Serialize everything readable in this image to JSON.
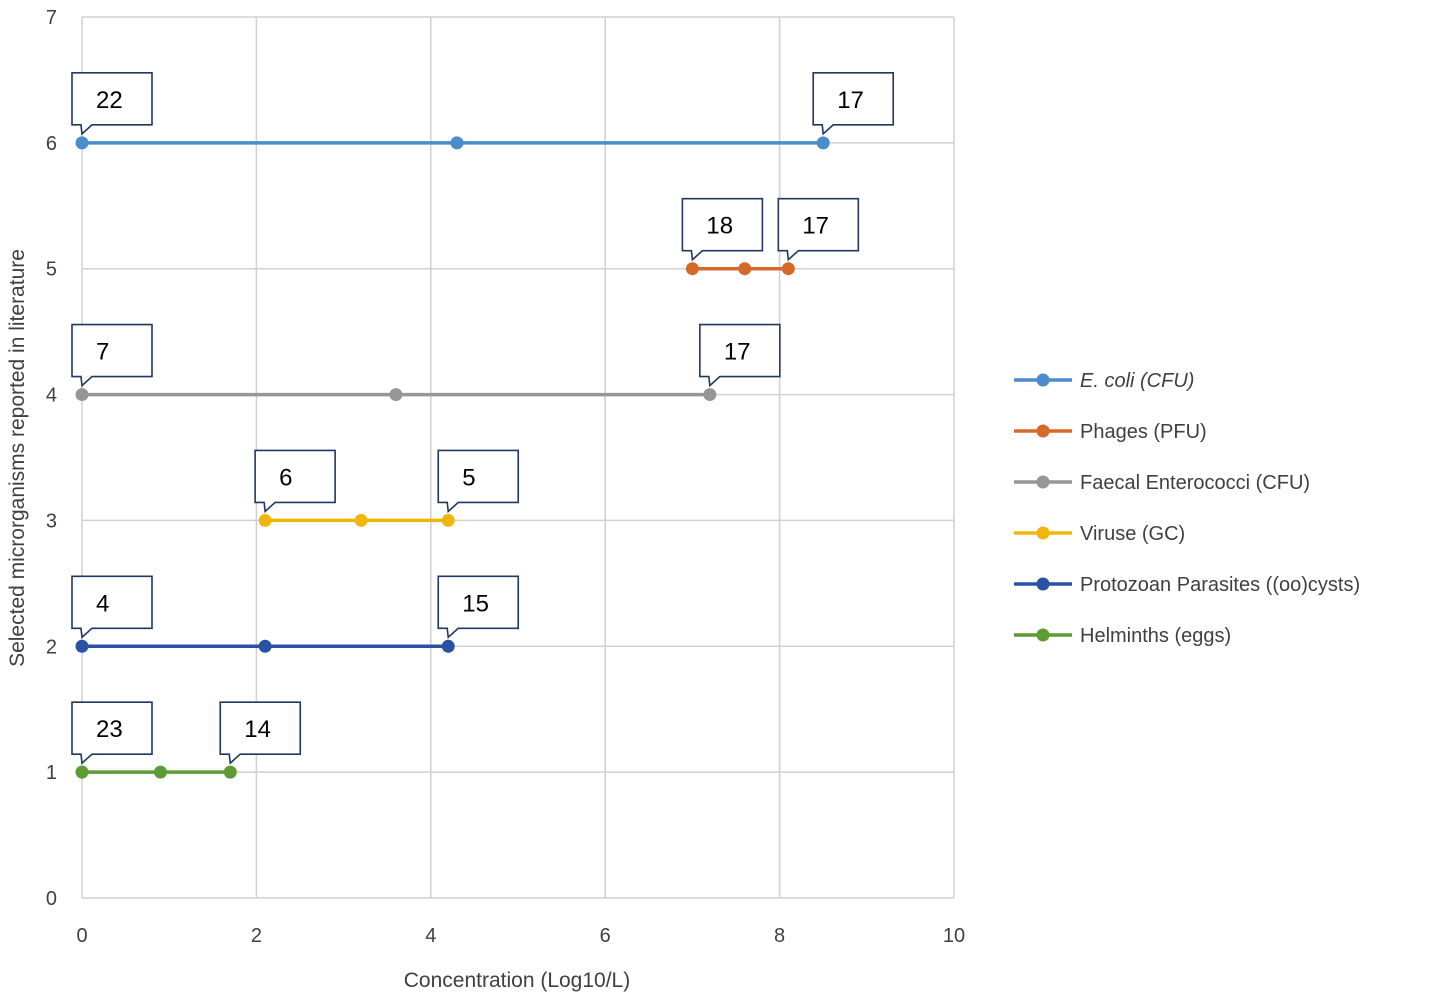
{
  "chart_data": {
    "type": "line",
    "title": "",
    "xlabel": "Concentration (Log10/L)",
    "ylabel": "Selected microrganisms reported in literature",
    "xlim": [
      0,
      10
    ],
    "ylim": [
      0,
      7
    ],
    "xticks": [
      0,
      2,
      4,
      6,
      8,
      10
    ],
    "yticks": [
      0,
      1,
      2,
      3,
      4,
      5,
      6,
      7
    ],
    "grid": true,
    "legend_position": "right",
    "series": [
      {
        "name": "E. coli (CFU)",
        "italic": true,
        "color": "#4a8ccc",
        "y": 6,
        "x": [
          0,
          4.3,
          8.5
        ],
        "callouts": [
          {
            "text": "22",
            "x": 0
          },
          {
            "text": "17",
            "x": 8.5
          }
        ]
      },
      {
        "name": "Phages (PFU)",
        "italic": false,
        "color": "#d4692a",
        "y": 5,
        "x": [
          7.0,
          7.6,
          8.1
        ],
        "callouts": [
          {
            "text": "18",
            "x": 7.0
          },
          {
            "text": "17",
            "x": 8.1
          }
        ]
      },
      {
        "name": "Faecal Enterococci (CFU)",
        "italic": false,
        "color": "#969696",
        "y": 4,
        "x": [
          0,
          3.6,
          7.2
        ],
        "callouts": [
          {
            "text": "7",
            "x": 0
          },
          {
            "text": "17",
            "x": 7.2
          }
        ]
      },
      {
        "name": "Viruse (GC)",
        "italic": false,
        "color": "#f1b60c",
        "y": 3,
        "x": [
          2.1,
          3.2,
          4.2
        ],
        "callouts": [
          {
            "text": "6",
            "x": 2.1
          },
          {
            "text": "5",
            "x": 4.2
          }
        ]
      },
      {
        "name": "Protozoan Parasites ((oo)cysts)",
        "italic": false,
        "color": "#2a52a4",
        "y": 2,
        "x": [
          0,
          2.1,
          4.2
        ],
        "callouts": [
          {
            "text": "4",
            "x": 0
          },
          {
            "text": "15",
            "x": 4.2
          }
        ]
      },
      {
        "name": "Helminths (eggs)",
        "italic": false,
        "color": "#5d9b34",
        "y": 1,
        "x": [
          0,
          0.9,
          1.7
        ],
        "callouts": [
          {
            "text": "23",
            "x": 0
          },
          {
            "text": "14",
            "x": 1.7
          }
        ]
      }
    ]
  }
}
